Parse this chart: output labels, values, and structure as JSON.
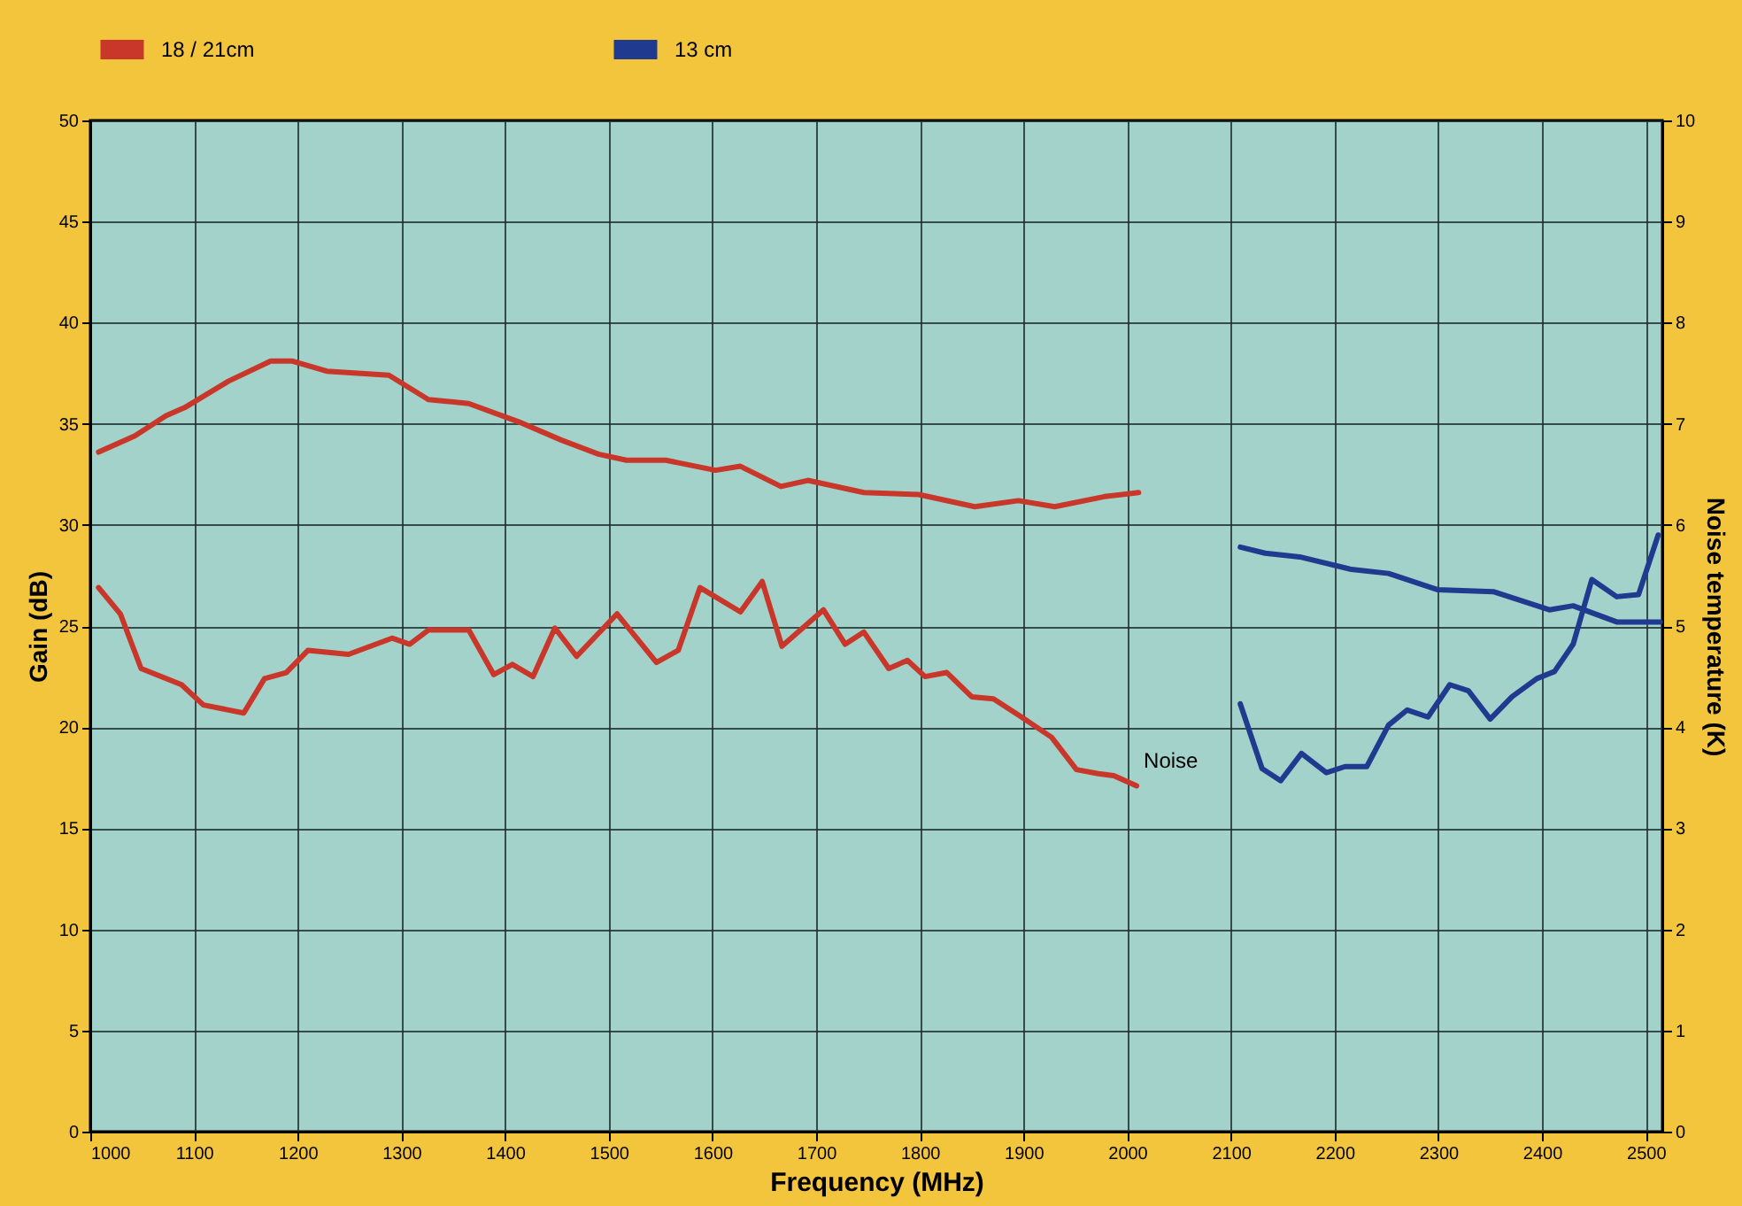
{
  "chart_data": {
    "type": "line",
    "xlabel": "Frequency (MHz)",
    "ylabel": "Gain (dB)",
    "y2label": "Noise temperature (K)",
    "xlim": [
      1000,
      2516
    ],
    "xticks": [
      1000,
      1100,
      1200,
      1300,
      1400,
      1500,
      1600,
      1700,
      1800,
      1900,
      2000,
      2100,
      2200,
      2300,
      2400,
      2500
    ],
    "ylim": [
      0,
      50
    ],
    "yticks": [
      0,
      5,
      10,
      15,
      20,
      25,
      30,
      35,
      40,
      45,
      50
    ],
    "y2lim": [
      0,
      10
    ],
    "y2ticks": [
      0,
      1,
      2,
      3,
      4,
      5,
      6,
      7,
      8,
      9,
      10
    ],
    "grid": true,
    "legend": "top",
    "marker": "none",
    "line_style": "solid",
    "annotations": [
      "Noise"
    ],
    "series": [
      {
        "name": "18 / 21cm",
        "color": "#c8372a",
        "x": [
          1008,
          1043,
          1073,
          1091,
          1133,
          1174,
          1195,
          1228,
          1288,
          1326,
          1365,
          1413,
          1454,
          1490,
          1517,
          1555,
          1603,
          1627,
          1666,
          1692,
          1746,
          1799,
          1853,
          1895,
          1930,
          1978,
          2011
        ],
        "values": [
          33.6,
          34.4,
          35.4,
          35.8,
          37.1,
          38.1,
          38.1,
          37.6,
          37.4,
          36.2,
          36.0,
          35.1,
          34.2,
          33.5,
          33.2,
          33.2,
          32.7,
          32.9,
          31.9,
          32.2,
          31.6,
          31.5,
          30.9,
          31.2,
          30.9,
          31.4,
          31.6
        ]
      },
      {
        "color": "#c8372a",
        "axis": "y2",
        "x": [
          1008,
          1029,
          1049,
          1088,
          1109,
          1148,
          1168,
          1189,
          1210,
          1249,
          1291,
          1308,
          1326,
          1365,
          1389,
          1407,
          1427,
          1448,
          1469,
          1508,
          1546,
          1567,
          1588,
          1627,
          1648,
          1667,
          1707,
          1728,
          1746,
          1770,
          1788,
          1805,
          1826,
          1850,
          1871,
          1898,
          1927,
          1951,
          1972,
          1987,
          2009
        ],
        "values": [
          5.38,
          5.12,
          4.58,
          4.42,
          4.22,
          4.14,
          4.48,
          4.54,
          4.76,
          4.72,
          4.88,
          4.82,
          4.96,
          4.96,
          4.52,
          4.62,
          4.5,
          4.98,
          4.7,
          5.12,
          4.64,
          4.76,
          5.38,
          5.14,
          5.44,
          4.8,
          5.16,
          4.82,
          4.94,
          4.58,
          4.66,
          4.5,
          4.54,
          4.3,
          4.28,
          4.1,
          3.9,
          3.58,
          3.54,
          3.52,
          3.42
        ]
      },
      {
        "name": "13 cm",
        "color": "#1f3a8f",
        "x": [
          2109,
          2133,
          2168,
          2216,
          2252,
          2299,
          2353,
          2407,
          2430,
          2472,
          2514
        ],
        "values": [
          28.9,
          28.6,
          28.4,
          27.8,
          27.6,
          26.8,
          26.7,
          25.8,
          26.0,
          25.2,
          25.2
        ]
      },
      {
        "color": "#1f3a8f",
        "axis": "y2",
        "x": [
          2109,
          2130,
          2148,
          2168,
          2192,
          2210,
          2231,
          2252,
          2270,
          2290,
          2311,
          2329,
          2350,
          2371,
          2395,
          2412,
          2430,
          2448,
          2472,
          2493,
          2512
        ],
        "values": [
          4.23,
          3.59,
          3.47,
          3.74,
          3.55,
          3.61,
          3.61,
          4.02,
          4.17,
          4.1,
          4.42,
          4.36,
          4.08,
          4.3,
          4.48,
          4.55,
          4.82,
          5.46,
          5.29,
          5.31,
          5.9
        ]
      }
    ]
  }
}
